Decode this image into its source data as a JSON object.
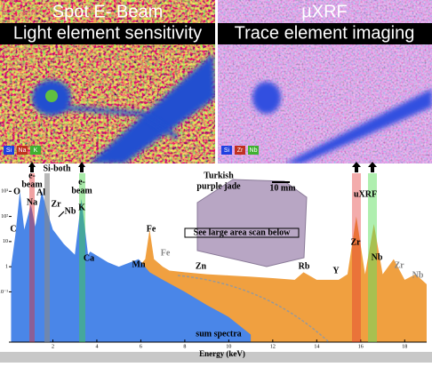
{
  "panels": [
    {
      "title": "Spot E- Beam",
      "subtitle": "Light element sensitivity",
      "legend": [
        "Si",
        "Na",
        "K"
      ]
    },
    {
      "title": "µXRF",
      "subtitle": "Trace element imaging",
      "legend": [
        "Si",
        "Zr",
        "Nb"
      ]
    }
  ],
  "chart_data": {
    "type": "area",
    "x_label": "Energy (keV)",
    "log_y": true,
    "xlim": [
      0,
      19
    ],
    "xticks": [
      2,
      4,
      6,
      8,
      10,
      12,
      14,
      16,
      18
    ],
    "ylim": [
      0.001,
      10000
    ],
    "yticks": [
      {
        "value": 1000,
        "label": "10³"
      },
      {
        "value": 100,
        "label": "10²"
      },
      10,
      1,
      {
        "value": 0.1,
        "label": "10⁻¹"
      }
    ],
    "series": [
      {
        "color": "#f0a040",
        "x": [
          0.1,
          1,
          2,
          3,
          4,
          5,
          5.9,
          6.2,
          6.4,
          6.6,
          7.0,
          7.3,
          8,
          9,
          10,
          11,
          12,
          13,
          13.4,
          14,
          15,
          15.4,
          15.8,
          16.2,
          16.6,
          17,
          17.5,
          18,
          18.5,
          19
        ],
        "values": [
          0.001,
          0.003,
          0.01,
          0.03,
          0.1,
          0.3,
          1,
          2,
          30,
          2,
          1,
          0.7,
          0.6,
          0.5,
          0.45,
          0.4,
          0.35,
          0.3,
          0.6,
          0.3,
          0.3,
          0.5,
          100,
          0.5,
          50,
          0.5,
          2,
          0.3,
          0.5,
          0.2
        ]
      },
      {
        "color": "#4a86e8",
        "x": [
          0.1,
          0.3,
          0.5,
          0.7,
          1.0,
          1.2,
          1.5,
          1.75,
          2.0,
          2.5,
          3.0,
          3.3,
          3.6,
          3.7,
          4.5,
          5.0,
          5.9,
          6.4,
          7.0,
          8.0,
          9.0,
          10.0,
          11.0
        ],
        "values": [
          1,
          20,
          1000,
          30,
          300,
          40,
          1000,
          150,
          30,
          8,
          3,
          500,
          3,
          4,
          1.5,
          1,
          2,
          0.6,
          0.3,
          0.1,
          0.03,
          0.01,
          0.002
        ]
      }
    ],
    "annotations": [
      "C",
      "O",
      "e-",
      "beam",
      "Na",
      "Al",
      "Si-both",
      "Zr",
      "Nb",
      "e-",
      "beam",
      "K",
      "Ca",
      "Mn",
      "Fe",
      "Fe",
      "Zn",
      "Rb",
      "Y",
      "uXRF",
      "Zr",
      "Nb",
      "Zr",
      "Nb",
      "Turkish",
      "purple jade",
      "10 mm",
      "See large area  scan below",
      "sum spectra"
    ]
  }
}
